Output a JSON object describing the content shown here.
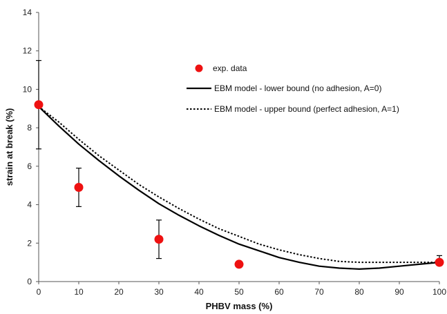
{
  "chart_data": {
    "type": "scatter",
    "title": "",
    "xlabel": "PHBV mass (%)",
    "ylabel": "strain at break (%)",
    "xlim": [
      0,
      100
    ],
    "ylim": [
      0,
      14
    ],
    "x_ticks": [
      "0",
      "10",
      "20",
      "30",
      "40",
      "50",
      "60",
      "70",
      "80",
      "90",
      "100"
    ],
    "y_ticks": [
      "0",
      "2",
      "4",
      "6",
      "8",
      "10",
      "12",
      "14"
    ],
    "grid": false,
    "legend_position": "upper-right-inside",
    "series": [
      {
        "name": "exp. data",
        "kind": "points-with-errorbars",
        "color": "#ee1111",
        "x": [
          0,
          10,
          30,
          50,
          100
        ],
        "y": [
          9.2,
          4.9,
          2.2,
          0.9,
          1.0
        ],
        "error_low": [
          6.9,
          3.9,
          1.2,
          null,
          0.95
        ],
        "error_high": [
          11.5,
          5.9,
          3.2,
          null,
          1.35
        ]
      },
      {
        "name": "EBM model - lower bound (no adhesion, A=0)",
        "kind": "solid-line",
        "color": "#000000",
        "x": [
          0,
          5,
          10,
          15,
          20,
          25,
          30,
          35,
          40,
          45,
          50,
          55,
          60,
          65,
          70,
          75,
          80,
          85,
          90,
          95,
          100
        ],
        "y": [
          9.1,
          8.1,
          7.15,
          6.3,
          5.5,
          4.75,
          4.05,
          3.45,
          2.9,
          2.4,
          1.95,
          1.6,
          1.25,
          1.0,
          0.8,
          0.7,
          0.65,
          0.7,
          0.8,
          0.9,
          1.0
        ]
      },
      {
        "name": "EBM model - upper bound (perfect adhesion, A=1)",
        "kind": "dotted-line",
        "color": "#000000",
        "x": [
          0,
          5,
          10,
          15,
          20,
          25,
          30,
          35,
          40,
          45,
          50,
          55,
          60,
          65,
          70,
          75,
          80,
          85,
          90,
          95,
          100
        ],
        "y": [
          9.1,
          8.3,
          7.4,
          6.55,
          5.8,
          5.05,
          4.4,
          3.8,
          3.25,
          2.75,
          2.35,
          1.95,
          1.65,
          1.4,
          1.2,
          1.05,
          1.0,
          1.0,
          1.0,
          1.0,
          1.0
        ]
      }
    ]
  }
}
